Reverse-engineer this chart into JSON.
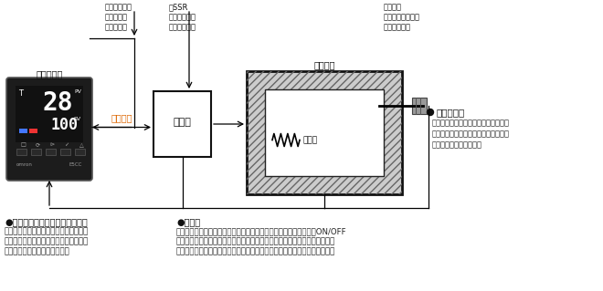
{
  "bg_color": "#ffffff",
  "top_left_labels": [
    "・リレー出力",
    "・電圧出力",
    "・電流出力"
  ],
  "top_mid_labels": [
    "・SSR",
    "・電磁開閉器",
    "・電力調整器"
  ],
  "top_right_labels": [
    "・熱電対",
    "・白金測温抵抗体",
    "・サーミスタ"
  ],
  "controller_label": "温度調節器",
  "operator_label": "操作器",
  "control_output_label": "制御出力",
  "control_target_label": "制御対象",
  "heater_label": "ヒータ",
  "sensor_bullet_label": "●温度センサ",
  "sensor_desc_lines": [
    "温度制御したい場所の温度を測定しま",
    "す。温度を電圧、抵抗値などの物理量",
    "に変換して出力します。"
  ],
  "bottom_label1_title": "●温度調節器（デジタル調節計）",
  "bottom_label1_lines": [
    "温度センサの出力を現在値に変換し、現",
    "在温度が目標値に近付くように操作器へ",
    "制御出力を出力する機器です。"
  ],
  "bottom_label2_title": "●操作器",
  "bottom_label2_lines": [
    "炉、槽などの制御対象を加熱または冷却するため、ヒータの電流をON/OFF",
    "する電磁開閉器、燃料の供給停止を行うバルブなどをいいます。温度調節器",
    "の出力がリレー出力の場合、リレーが操作器の機能を持つ場合もあります。"
  ]
}
